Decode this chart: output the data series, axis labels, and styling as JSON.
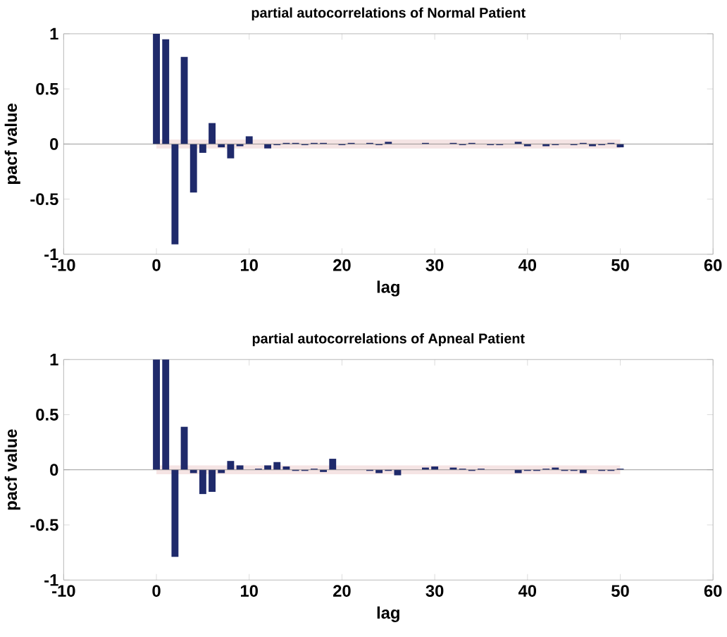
{
  "chart_data": [
    {
      "type": "bar",
      "title": "partial autocorrelations of Normal Patient",
      "xlabel": "lag",
      "ylabel": "pacf value",
      "x": [
        0,
        1,
        2,
        3,
        4,
        5,
        6,
        7,
        8,
        9,
        10,
        11,
        12,
        13,
        14,
        15,
        16,
        17,
        18,
        19,
        20,
        21,
        22,
        23,
        24,
        25,
        26,
        27,
        28,
        29,
        30,
        31,
        32,
        33,
        34,
        35,
        36,
        37,
        38,
        39,
        40,
        41,
        42,
        43,
        44,
        45,
        46,
        47,
        48,
        49,
        50
      ],
      "values": [
        1,
        0.95,
        -0.91,
        0.79,
        -0.44,
        -0.08,
        0.19,
        -0.03,
        -0.13,
        -0.02,
        0.07,
        0,
        -0.04,
        -0.01,
        0.01,
        0.01,
        -0.01,
        0.01,
        0.01,
        0,
        -0.01,
        0.01,
        0,
        0.01,
        -0.01,
        0.02,
        0,
        0,
        0,
        0.01,
        0,
        0,
        0.01,
        -0.01,
        0.01,
        0,
        -0.01,
        -0.01,
        0,
        0.02,
        -0.02,
        0,
        -0.02,
        -0.01,
        0,
        -0.01,
        0.01,
        -0.02,
        -0.01,
        0.01,
        -0.03
      ],
      "color": "#1f2a6b",
      "xlim": [
        -10,
        60
      ],
      "xticks": [
        -10,
        0,
        10,
        20,
        30,
        40,
        50,
        60
      ],
      "ylim": [
        -1,
        1
      ],
      "yticks": [
        -1,
        -0.5,
        0,
        0.5,
        1
      ],
      "ref_lines": [
        {
          "axis": "y",
          "value": 0,
          "color": "#808080"
        }
      ],
      "bands": [
        {
          "axis": "y",
          "from": -0.04,
          "to": 0.04,
          "color": "#f5e4e4"
        }
      ]
    },
    {
      "type": "bar",
      "title": "partial autocorrelations of Apneal Patient",
      "xlabel": "lag",
      "ylabel": "pacf value",
      "x": [
        0,
        1,
        2,
        3,
        4,
        5,
        6,
        7,
        8,
        9,
        10,
        11,
        12,
        13,
        14,
        15,
        16,
        17,
        18,
        19,
        20,
        21,
        22,
        23,
        24,
        25,
        26,
        27,
        28,
        29,
        30,
        31,
        32,
        33,
        34,
        35,
        36,
        37,
        38,
        39,
        40,
        41,
        42,
        43,
        44,
        45,
        46,
        47,
        48,
        49,
        50
      ],
      "values": [
        1,
        1,
        -0.79,
        0.39,
        -0.03,
        -0.22,
        -0.2,
        -0.03,
        0.08,
        0.04,
        0,
        0.01,
        0.04,
        0.07,
        0.03,
        -0.01,
        -0.01,
        0.01,
        -0.02,
        0.1,
        0,
        0,
        0,
        -0.01,
        -0.03,
        -0.01,
        -0.05,
        0,
        0,
        0.02,
        0.03,
        0,
        0.02,
        0.01,
        -0.01,
        0.01,
        0,
        0,
        0,
        -0.03,
        -0.01,
        -0.01,
        0.01,
        0.02,
        -0.01,
        -0.01,
        -0.03,
        0,
        -0.01,
        -0.01,
        0.01
      ],
      "color": "#1f2a6b",
      "xlim": [
        -10,
        60
      ],
      "xticks": [
        -10,
        0,
        10,
        20,
        30,
        40,
        50,
        60
      ],
      "ylim": [
        -1,
        1
      ],
      "yticks": [
        -1,
        -0.5,
        0,
        0.5,
        1
      ],
      "ref_lines": [
        {
          "axis": "y",
          "value": 0,
          "color": "#808080"
        }
      ],
      "bands": [
        {
          "axis": "y",
          "from": -0.04,
          "to": 0.04,
          "color": "#f5e4e4"
        }
      ]
    }
  ]
}
